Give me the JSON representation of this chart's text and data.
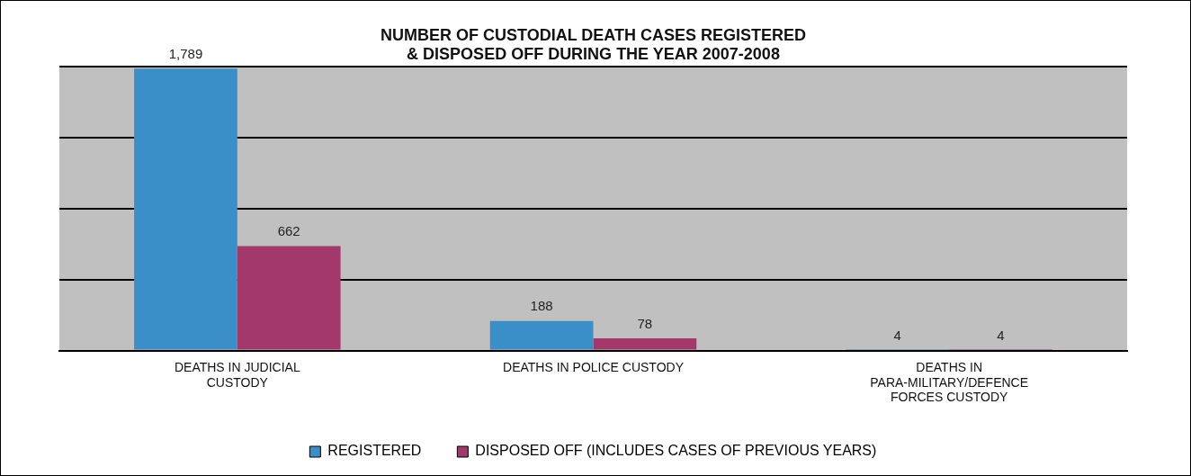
{
  "chart_data": {
    "type": "bar",
    "title": "NUMBER OF CUSTODIAL DEATH CASES REGISTERED & DISPOSED OFF DURING THE YEAR 2007-2008",
    "categories": [
      "DEATHS IN JUDICIAL CUSTODY",
      "DEATHS IN POLICE CUSTODY",
      "DEATHS IN PARA-MILITARY/DEFENCE FORCES CUSTODY"
    ],
    "series": [
      {
        "name": "REGISTERED",
        "color": "#3a8fc8",
        "values": [
          1789,
          188,
          4
        ],
        "value_labels": [
          "1,789",
          "188",
          "4"
        ]
      },
      {
        "name": "DISPOSED OFF (INCLUDES CASES OF PREVIOUS YEARS)",
        "color": "#a3386a",
        "values": [
          662,
          78,
          4
        ],
        "value_labels": [
          "662",
          "78",
          "4"
        ]
      }
    ],
    "ylim": [
      0,
      1800
    ],
    "yticks": [
      {
        "value": 0,
        "label": null
      },
      {
        "value": 450,
        "label": null
      },
      {
        "value": 900,
        "label": null
      },
      {
        "value": 1350,
        "label": null
      },
      {
        "value": 1800,
        "label": null
      }
    ],
    "grid": "y",
    "legend": "bottom",
    "tick_labels": "x"
  }
}
